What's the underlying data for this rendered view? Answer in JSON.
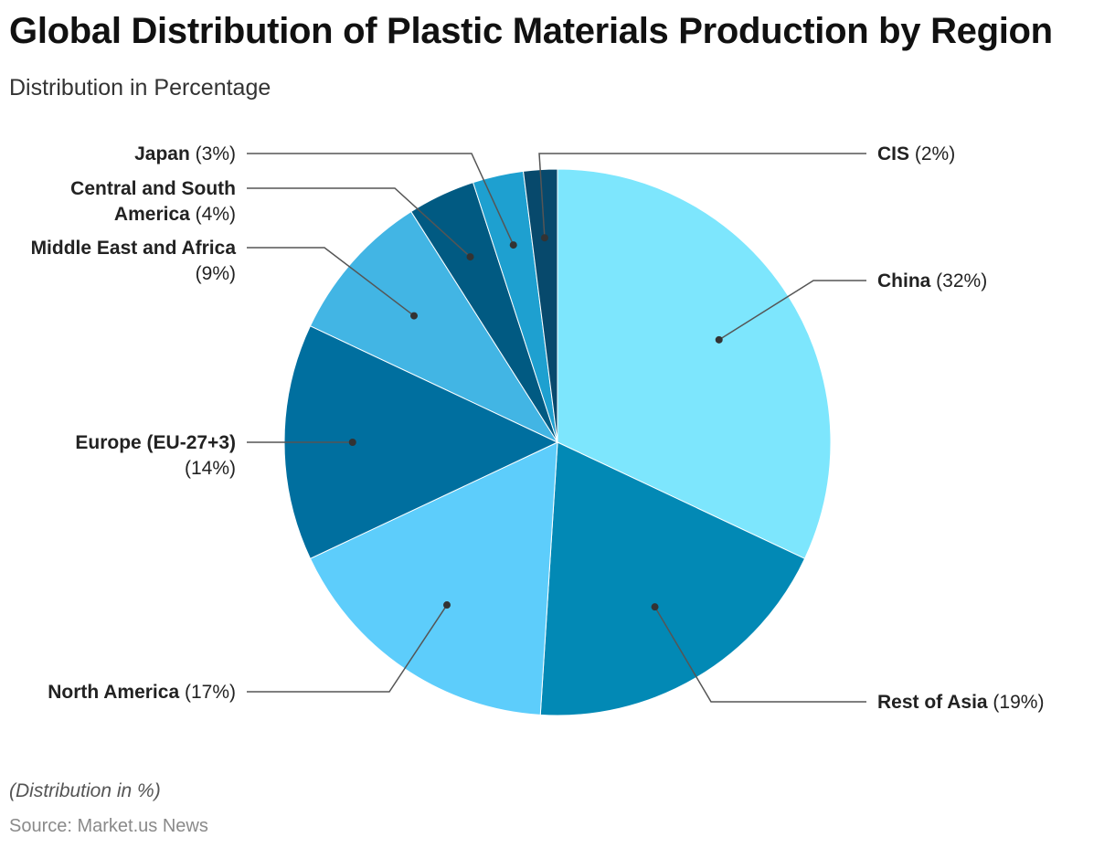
{
  "header": {
    "title": "Global Distribution of Plastic Materials Production by Region",
    "subtitle": "Distribution in Percentage"
  },
  "footer": {
    "note": "(Distribution in %)",
    "source": "Source: Market.us News"
  },
  "chart_data": {
    "type": "pie",
    "title": "Global Distribution of Plastic Materials Production by Region",
    "subtitle": "Distribution in Percentage",
    "unit": "%",
    "start": "12 o'clock, clockwise",
    "slices": [
      {
        "name": "China",
        "value": 32,
        "color": "#7de6fd"
      },
      {
        "name": "Rest of Asia",
        "value": 19,
        "color": "#0289b5"
      },
      {
        "name": "North America",
        "value": 17,
        "color": "#5dcdfb"
      },
      {
        "name": "Europe (EU-27+3)",
        "value": 14,
        "color": "#006f9f"
      },
      {
        "name": "Middle East and Africa",
        "value": 9,
        "color": "#42b5e4"
      },
      {
        "name": "Central and South America",
        "value": 4,
        "color": "#015a82"
      },
      {
        "name": "Japan",
        "value": 3,
        "color": "#1ea0d0"
      },
      {
        "name": "CIS",
        "value": 2,
        "color": "#07496c"
      }
    ]
  }
}
